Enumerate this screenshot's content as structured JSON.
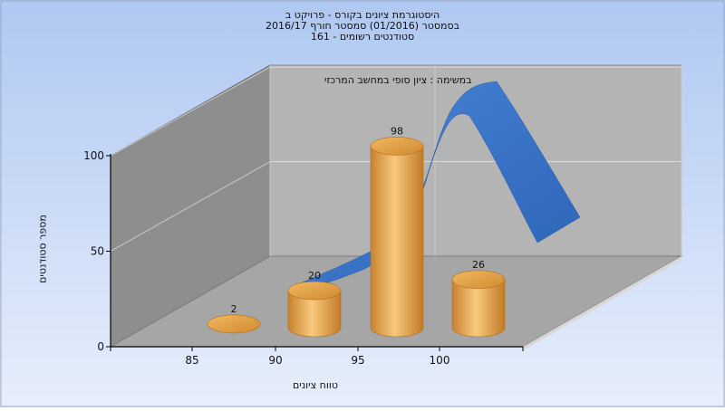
{
  "chart_data": {
    "type": "bar",
    "title_lines": [
      "היסטוגרמת ציונים בקורס - פרויקט ב",
      "בסמסטר  (01/2016)  סמסטר חורף 2016/17",
      "סטודנטים רשומים - 161"
    ],
    "subtitle": "במשימה : ציון סופי במחשב המרכזי",
    "xlabel": "טווח ציונים",
    "ylabel": "מספר סטודנטים",
    "x_ticks": [
      "85",
      "90",
      "95",
      "100"
    ],
    "y_ticks": [
      "0",
      "50",
      "100"
    ],
    "ylim": [
      0,
      100
    ],
    "categories": [
      "85-90",
      "90-95",
      "95-100",
      "100"
    ],
    "values": [
      2,
      20,
      98,
      26
    ],
    "value_labels": [
      "2",
      "20",
      "98",
      "26"
    ],
    "grid": true,
    "style": "3d",
    "colors": {
      "bar": "#E8A33C",
      "curve": "#3673CC",
      "background_top": "#AFC8F2",
      "background_bottom": "#E7EEFB"
    }
  }
}
